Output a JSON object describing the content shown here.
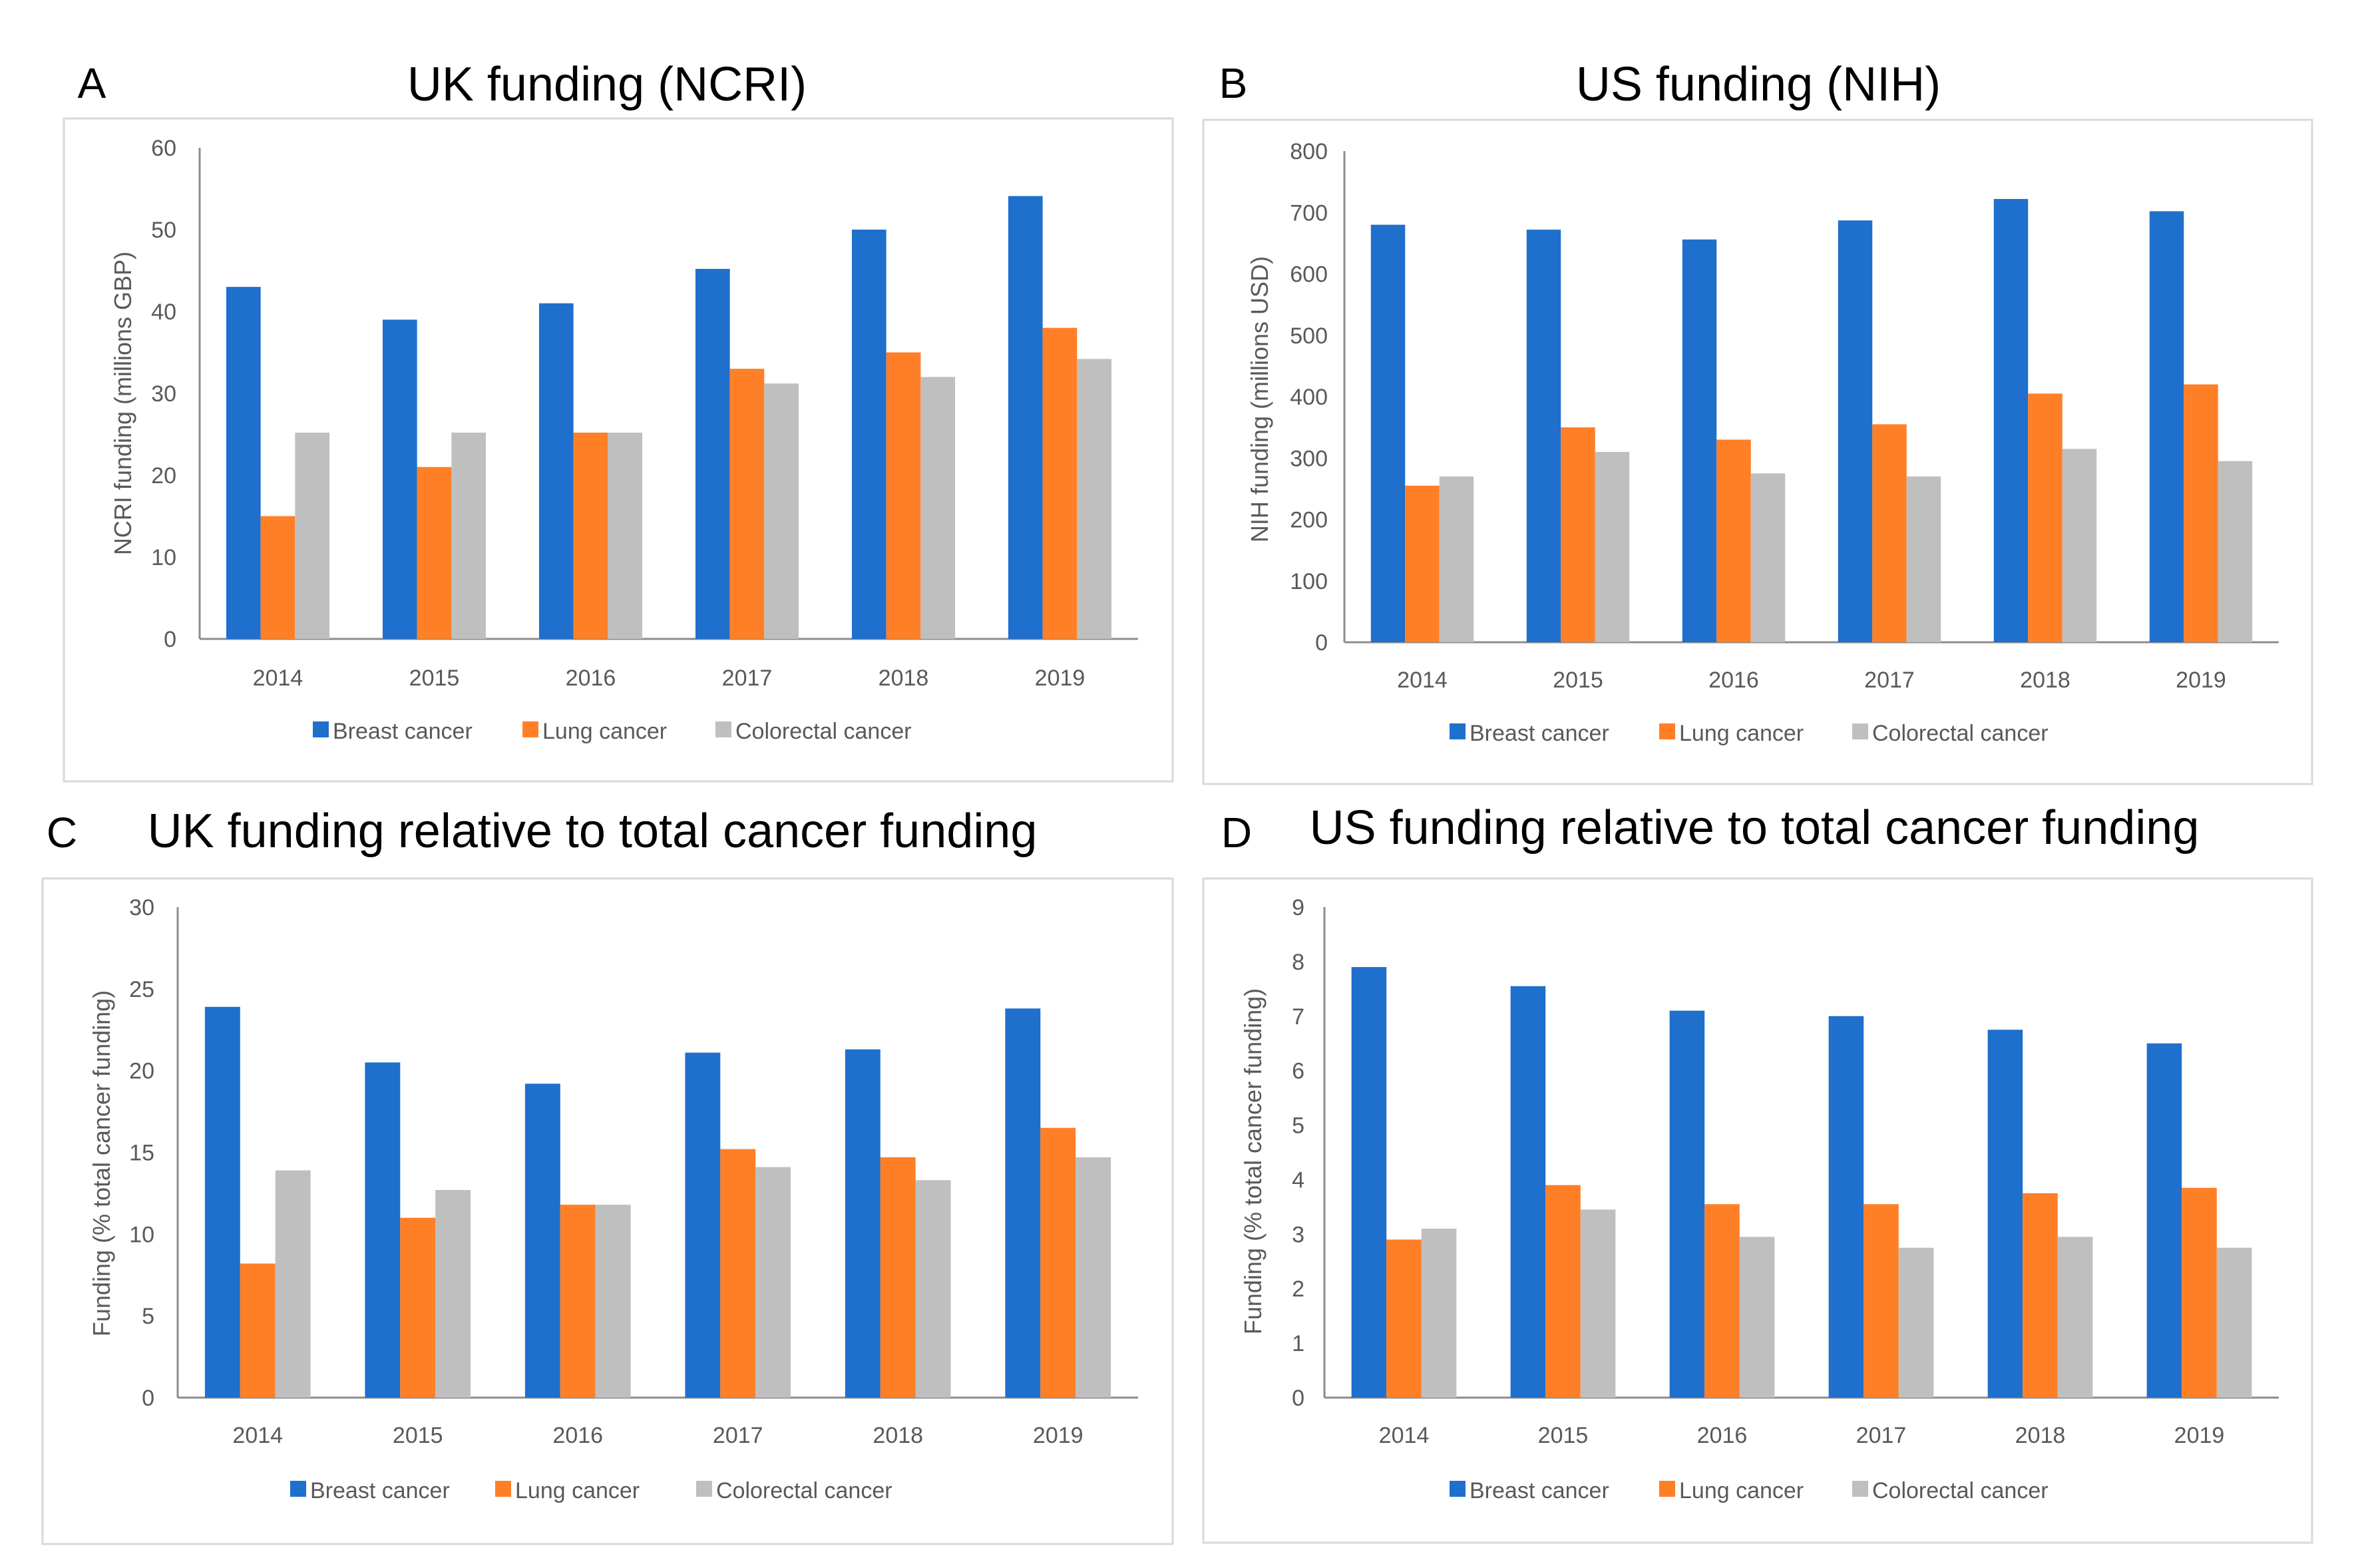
{
  "colors": {
    "breast": "#1F6FCC",
    "lung": "#FF7F27",
    "colorectal": "#BFBFBF",
    "axis": "#8C8C8C",
    "tick_text": "#595959",
    "frame": "#D9D9D9"
  },
  "chart_data": [
    {
      "panel": "A",
      "title": "UK funding (NCRI)",
      "type": "bar",
      "categories": [
        "2014",
        "2015",
        "2016",
        "2017",
        "2018",
        "2019"
      ],
      "series": [
        {
          "name": "Breast cancer",
          "values": [
            43,
            39,
            41,
            45.2,
            50,
            54.1
          ]
        },
        {
          "name": "Lung cancer",
          "values": [
            15,
            21,
            25.2,
            33,
            35,
            38
          ]
        },
        {
          "name": "Colorectal cancer",
          "values": [
            25.2,
            25.2,
            25.2,
            31.2,
            32,
            34.2
          ]
        }
      ],
      "ylabel": "NCRI funding (millions GBP)",
      "ylim": [
        0,
        60
      ],
      "yticks": [
        "0",
        "10",
        "20",
        "30",
        "40",
        "50",
        "60"
      ],
      "legend": "bottom",
      "grid": false
    },
    {
      "panel": "B",
      "title": "US funding (NIH)",
      "type": "bar",
      "categories": [
        "2014",
        "2015",
        "2016",
        "2017",
        "2018",
        "2019"
      ],
      "series": [
        {
          "name": "Breast cancer",
          "values": [
            680,
            672,
            656,
            687,
            722,
            702
          ]
        },
        {
          "name": "Lung cancer",
          "values": [
            255,
            350,
            330,
            355,
            405,
            420
          ]
        },
        {
          "name": "Colorectal cancer",
          "values": [
            270,
            310,
            275,
            270,
            315,
            295
          ]
        }
      ],
      "ylabel": "NIH funding (millions USD)",
      "ylim": [
        0,
        800
      ],
      "yticks": [
        "0",
        "100",
        "200",
        "300",
        "400",
        "500",
        "600",
        "700",
        "800"
      ],
      "legend": "bottom",
      "grid": false
    },
    {
      "panel": "C",
      "title": "UK funding relative to total cancer funding",
      "type": "bar",
      "categories": [
        "2014",
        "2015",
        "2016",
        "2017",
        "2018",
        "2019"
      ],
      "series": [
        {
          "name": "Breast cancer",
          "values": [
            23.9,
            20.5,
            19.2,
            21.1,
            21.3,
            23.8
          ]
        },
        {
          "name": "Lung cancer",
          "values": [
            8.2,
            11,
            11.8,
            15.2,
            14.7,
            16.5
          ]
        },
        {
          "name": "Colorectal cancer",
          "values": [
            13.9,
            12.7,
            11.8,
            14.1,
            13.3,
            14.7
          ]
        }
      ],
      "ylabel": "Funding (% total cancer funding)",
      "ylim": [
        0,
        30
      ],
      "yticks": [
        "0",
        "5",
        "10",
        "15",
        "20",
        "25",
        "30"
      ],
      "legend": "bottom",
      "grid": false
    },
    {
      "panel": "D",
      "title": "US funding relative to total cancer funding",
      "type": "bar",
      "categories": [
        "2014",
        "2015",
        "2016",
        "2017",
        "2018",
        "2019"
      ],
      "series": [
        {
          "name": "Breast cancer",
          "values": [
            7.9,
            7.55,
            7.1,
            7,
            6.75,
            6.5
          ]
        },
        {
          "name": "Lung cancer",
          "values": [
            2.9,
            3.9,
            3.55,
            3.55,
            3.75,
            3.85
          ]
        },
        {
          "name": "Colorectal cancer",
          "values": [
            3.1,
            3.45,
            2.95,
            2.75,
            2.95,
            2.75
          ]
        }
      ],
      "ylabel": "Funding (% total cancer funding)",
      "ylim": [
        0,
        9
      ],
      "yticks": [
        "0",
        "1",
        "2",
        "3",
        "4",
        "5",
        "6",
        "7",
        "8",
        "9"
      ],
      "legend": "bottom",
      "grid": false
    }
  ]
}
